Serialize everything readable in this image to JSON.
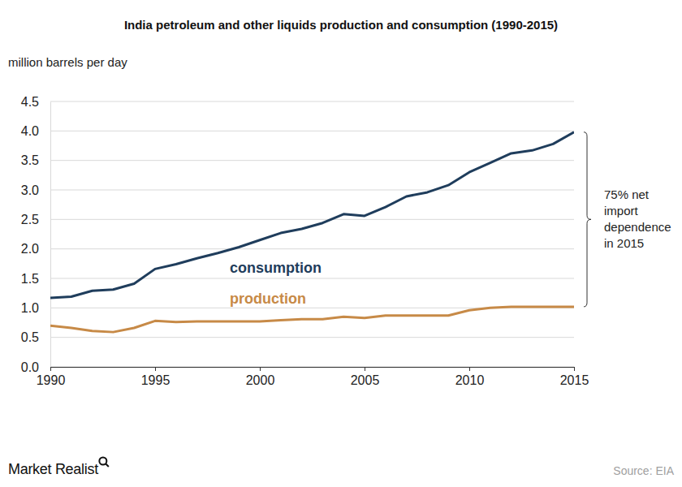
{
  "chart_data": {
    "type": "line",
    "title": "India petroleum and other liquids production and consumption (1990-2015)",
    "y_label": "million barrels per day",
    "x": [
      1990,
      1991,
      1992,
      1993,
      1994,
      1995,
      1996,
      1997,
      1998,
      1999,
      2000,
      2001,
      2002,
      2003,
      2004,
      2005,
      2006,
      2007,
      2008,
      2009,
      2010,
      2011,
      2012,
      2013,
      2014,
      2015
    ],
    "xlim": [
      1990,
      2015
    ],
    "xticks": [
      1990,
      1995,
      2000,
      2005,
      2010,
      2015
    ],
    "ylim": [
      0,
      4.5
    ],
    "yticks": [
      {
        "value": 0,
        "label": "0.0"
      },
      0.5,
      {
        "value": 1,
        "label": "1.0"
      },
      1.5,
      {
        "value": 2,
        "label": "2.0"
      },
      2.5,
      {
        "value": 3,
        "label": "3.0"
      },
      3.5,
      {
        "value": 4,
        "label": "4.0"
      },
      4.5
    ],
    "grid": true,
    "series": [
      {
        "name": "consumption",
        "color": "#1f3d5c",
        "values": [
          1.17,
          1.19,
          1.29,
          1.31,
          1.41,
          1.66,
          1.74,
          1.84,
          1.93,
          2.03,
          2.15,
          2.27,
          2.34,
          2.44,
          2.59,
          2.56,
          2.71,
          2.89,
          2.96,
          3.08,
          3.3,
          3.46,
          3.62,
          3.67,
          3.78,
          3.98
        ]
      },
      {
        "name": "production",
        "color": "#c78a47",
        "values": [
          0.7,
          0.66,
          0.61,
          0.59,
          0.66,
          0.78,
          0.76,
          0.77,
          0.77,
          0.77,
          0.77,
          0.79,
          0.81,
          0.81,
          0.85,
          0.83,
          0.87,
          0.87,
          0.87,
          0.87,
          0.96,
          1.0,
          1.02,
          1.02,
          1.02,
          1.02
        ]
      }
    ],
    "annotation": [
      "75% net",
      "import",
      "dependence",
      "in 2015"
    ],
    "source": "Source: EIA",
    "logo": "Market Realist"
  }
}
